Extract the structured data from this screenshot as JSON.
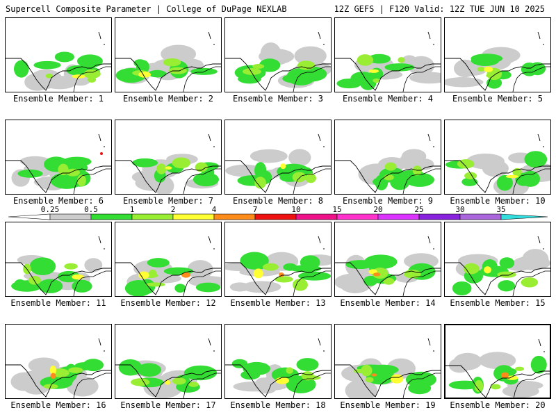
{
  "header": {
    "left": "Supercell Composite Parameter | College of DuPage NEXLAB",
    "right": "12Z GEFS | F120 Valid: 12Z TUE JUN 10 2025"
  },
  "panels": [
    {
      "label": "Ensemble Member: 1"
    },
    {
      "label": "Ensemble Member: 2"
    },
    {
      "label": "Ensemble Member: 3"
    },
    {
      "label": "Ensemble Member: 4"
    },
    {
      "label": "Ensemble Member: 5"
    },
    {
      "label": "Ensemble Member: 6"
    },
    {
      "label": "Ensemble Member: 7"
    },
    {
      "label": "Ensemble Member: 8"
    },
    {
      "label": "Ensemble Member: 9"
    },
    {
      "label": "Ensemble Member: 10"
    },
    {
      "label": "Ensemble Member: 11"
    },
    {
      "label": "Ensemble Member: 12"
    },
    {
      "label": "Ensemble Member: 13"
    },
    {
      "label": "Ensemble Member: 14"
    },
    {
      "label": "Ensemble Member: 15"
    },
    {
      "label": "Ensemble Member: 16"
    },
    {
      "label": "Ensemble Member: 17"
    },
    {
      "label": "Ensemble Member: 18"
    },
    {
      "label": "Ensemble Member: 19"
    },
    {
      "label": "Ensemble Member: 20",
      "selected": true
    }
  ],
  "colorbar": {
    "labels": [
      "0.25",
      "0.5",
      "1",
      "2",
      "4",
      "7",
      "10",
      "15",
      "20",
      "25",
      "30",
      "35"
    ],
    "colors": [
      "#ffffff",
      "#cccccc",
      "#33dd33",
      "#99ee33",
      "#ffff33",
      "#ff8c1a",
      "#ee1111",
      "#ee1188",
      "#ff33cc",
      "#dd33ff",
      "#8822dd",
      "#aa66dd",
      "#33dddd"
    ]
  }
}
